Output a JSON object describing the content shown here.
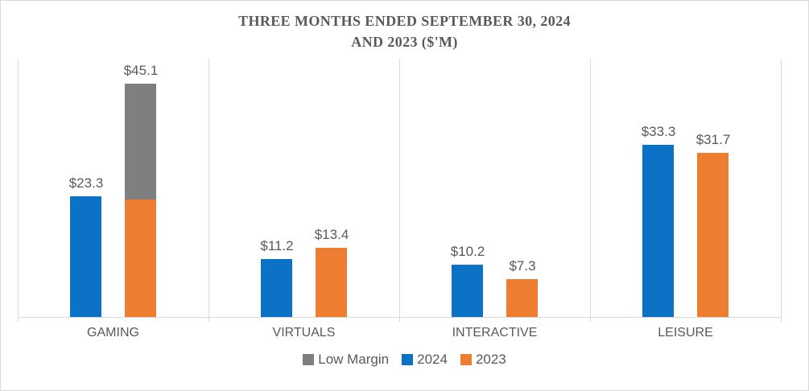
{
  "chart_data": {
    "type": "bar",
    "title": "THREE MONTHS ENDED SEPTEMBER 30, 2024 AND 2023 ($'M)",
    "title_lines": [
      "THREE MONTHS ENDED SEPTEMBER 30, 2024",
      "AND 2023 ($'M)"
    ],
    "categories": [
      "GAMING",
      "VIRTUALS",
      "INTERACTIVE",
      "LEISURE"
    ],
    "series": [
      {
        "name": "2024",
        "color": "#0b72c6",
        "values": [
          23.3,
          11.2,
          10.2,
          33.3
        ],
        "labels": [
          "$23.3",
          "$11.2",
          "$10.2",
          "$33.3"
        ]
      },
      {
        "name": "2023",
        "color": "#ed7d31",
        "values": [
          45.1,
          13.4,
          7.3,
          31.7
        ],
        "labels": [
          "$45.1",
          "$13.4",
          "$7.3",
          "$31.7"
        ],
        "overlay": {
          "name": "Low Margin",
          "color": "#7f7f7f",
          "category_index": 0,
          "base_value_estimate": 22.7,
          "overlay_value_estimate": 22.4,
          "total": 45.1
        }
      }
    ],
    "ylim": [
      0,
      50
    ],
    "grid": "vertical category separator lines only, light gray, no y-axis labels",
    "legend": {
      "position": "bottom",
      "items": [
        {
          "label": "Low Margin",
          "color": "#7f7f7f"
        },
        {
          "label": "2024",
          "color": "#0b72c6"
        },
        {
          "label": "2023",
          "color": "#ed7d31"
        }
      ]
    },
    "colors": {
      "axis": "#d9d9d9",
      "text": "#595959",
      "background": "#ffffff"
    }
  }
}
